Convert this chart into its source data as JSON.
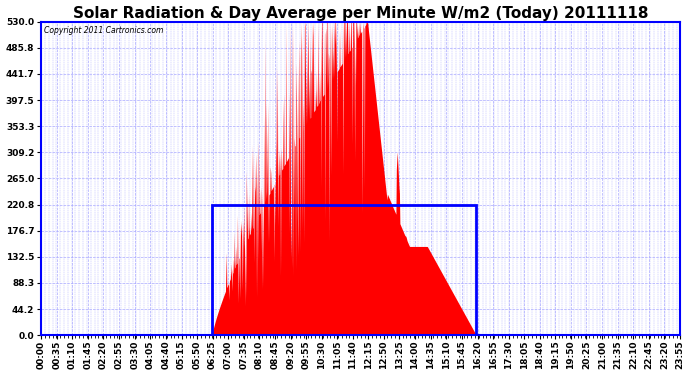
{
  "title": "Solar Radiation & Day Average per Minute W/m2 (Today) 20111118",
  "copyright_text": "Copyright 2011 Cartronics.com",
  "ylim": [
    0.0,
    530.0
  ],
  "yticks": [
    0.0,
    44.2,
    88.3,
    132.5,
    176.7,
    220.8,
    265.0,
    309.2,
    353.3,
    397.5,
    441.7,
    485.8,
    530.0
  ],
  "background_color": "#ffffff",
  "plot_bg_color": "#ffffff",
  "grid_color": "#aaaaff",
  "fill_color": "#ff0000",
  "avg_line_color": "#0000ff",
  "avg_value": 220.8,
  "sunrise_minute": 385,
  "sunset_minute": 980,
  "peak_minute": 735,
  "peak_val": 530.0,
  "time_labels": [
    "00:00",
    "00:35",
    "01:10",
    "01:45",
    "02:20",
    "02:55",
    "03:30",
    "04:05",
    "04:40",
    "05:15",
    "05:50",
    "06:25",
    "07:00",
    "07:35",
    "08:10",
    "08:45",
    "09:20",
    "09:55",
    "10:30",
    "11:05",
    "11:40",
    "12:15",
    "12:50",
    "13:25",
    "14:00",
    "14:35",
    "15:10",
    "15:45",
    "16:20",
    "16:55",
    "17:30",
    "18:05",
    "18:40",
    "19:15",
    "19:50",
    "20:25",
    "21:00",
    "21:35",
    "22:10",
    "22:45",
    "23:20",
    "23:55"
  ],
  "title_fontsize": 11,
  "tick_fontsize": 6.5,
  "border_color": "#0000ff",
  "total_minutes": 1440
}
